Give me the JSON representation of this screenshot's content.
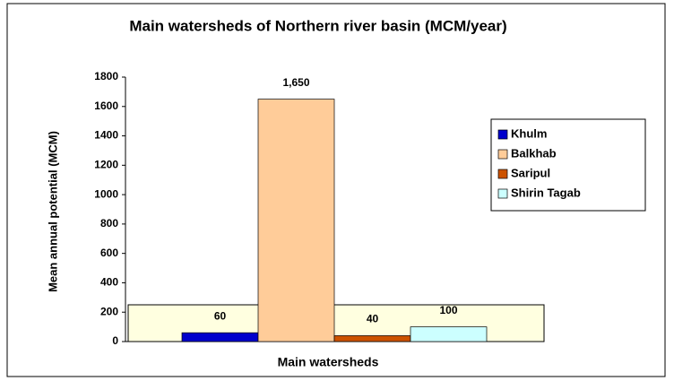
{
  "chart_data": {
    "type": "bar",
    "title": "Main watersheds of Northern river basin (MCM/year)",
    "x_label": "Main watersheds",
    "y_label": "Mean annual potential (MCM)",
    "categories": [
      null
    ],
    "series": [
      {
        "name": "Khulm",
        "color": "#0000cc",
        "values": [
          60
        ],
        "value_labels": [
          "60"
        ]
      },
      {
        "name": "Balkhab",
        "color": "#ffcc99",
        "values": [
          1650
        ],
        "value_labels": [
          "1,650"
        ]
      },
      {
        "name": "Saripul",
        "color": "#cc5200",
        "values": [
          40
        ],
        "value_labels": [
          "40"
        ]
      },
      {
        "name": "Shirin Tagab",
        "color": "#ccffff",
        "values": [
          100
        ],
        "value_labels": [
          "100"
        ]
      }
    ],
    "ylim": [
      0,
      1800
    ],
    "yticks": [
      0,
      200,
      400,
      600,
      800,
      1000,
      1200,
      1400,
      1600,
      1800
    ],
    "legend": "right"
  }
}
